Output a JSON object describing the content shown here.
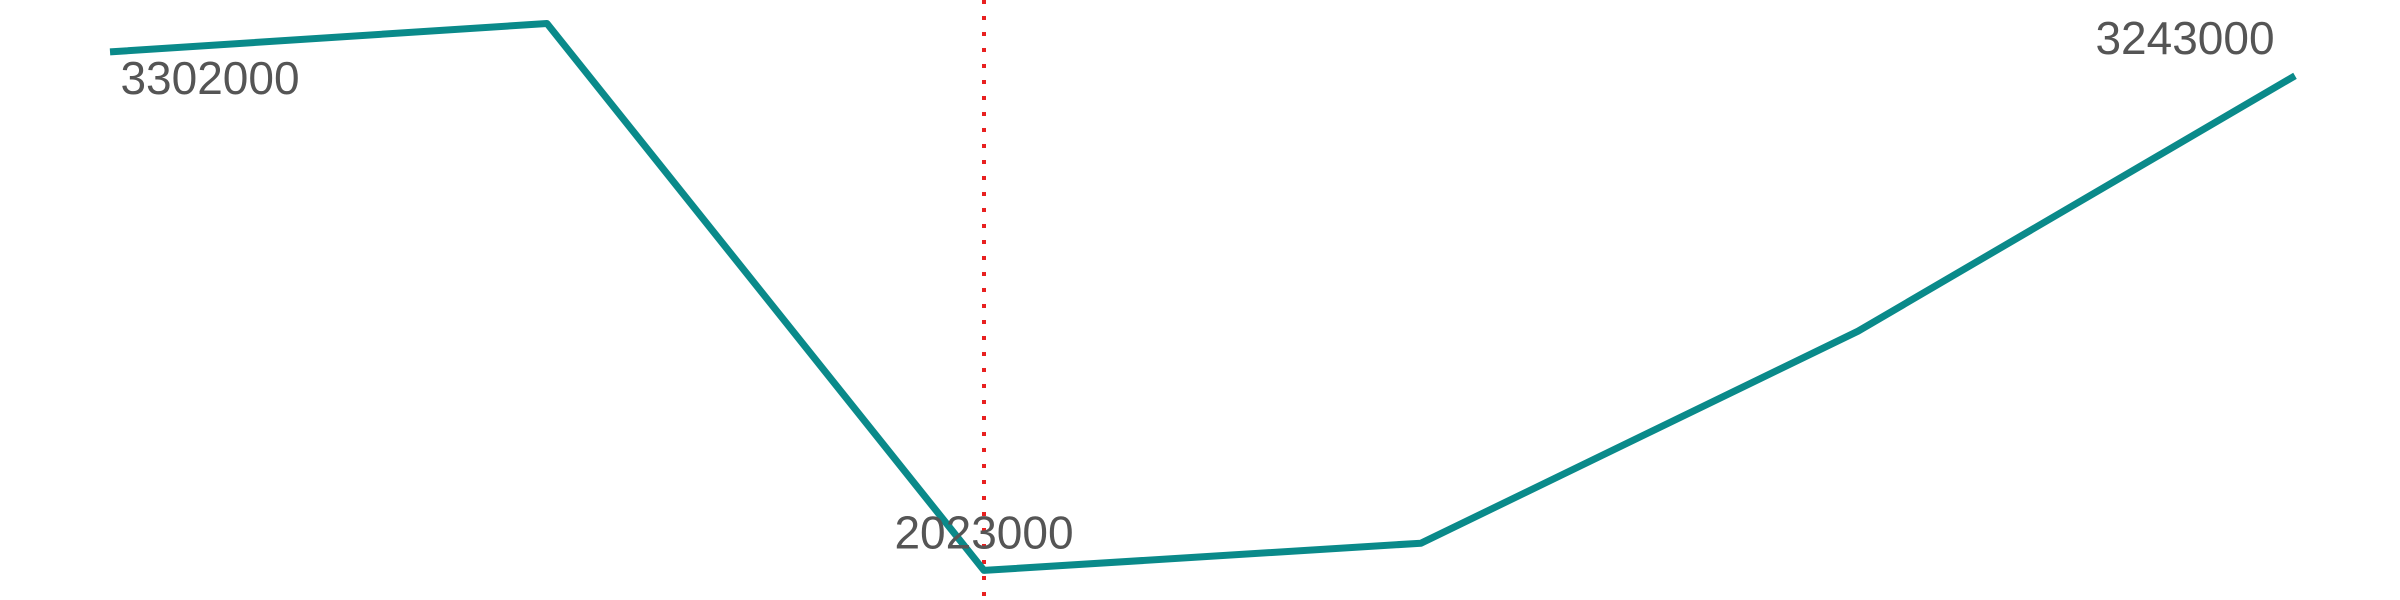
{
  "chart_data": {
    "type": "line",
    "x": [
      0,
      1,
      2,
      3,
      4,
      5
    ],
    "series": [
      {
        "values": [
          3302000,
          3372000,
          2023000,
          2090000,
          2613000,
          3243000
        ],
        "color": "#0a8a8a"
      }
    ],
    "data_labels": [
      {
        "index": 0,
        "text": "3302000"
      },
      {
        "index": 2,
        "text": "2023000"
      },
      {
        "index": 5,
        "text": "3243000"
      }
    ],
    "reference_line": {
      "x": 2,
      "color": "#e82020",
      "style": "dotted"
    },
    "ylim": [
      1950000,
      3430000
    ],
    "title": "",
    "xlabel": "",
    "ylabel": "",
    "grid": false,
    "legend": "none"
  }
}
